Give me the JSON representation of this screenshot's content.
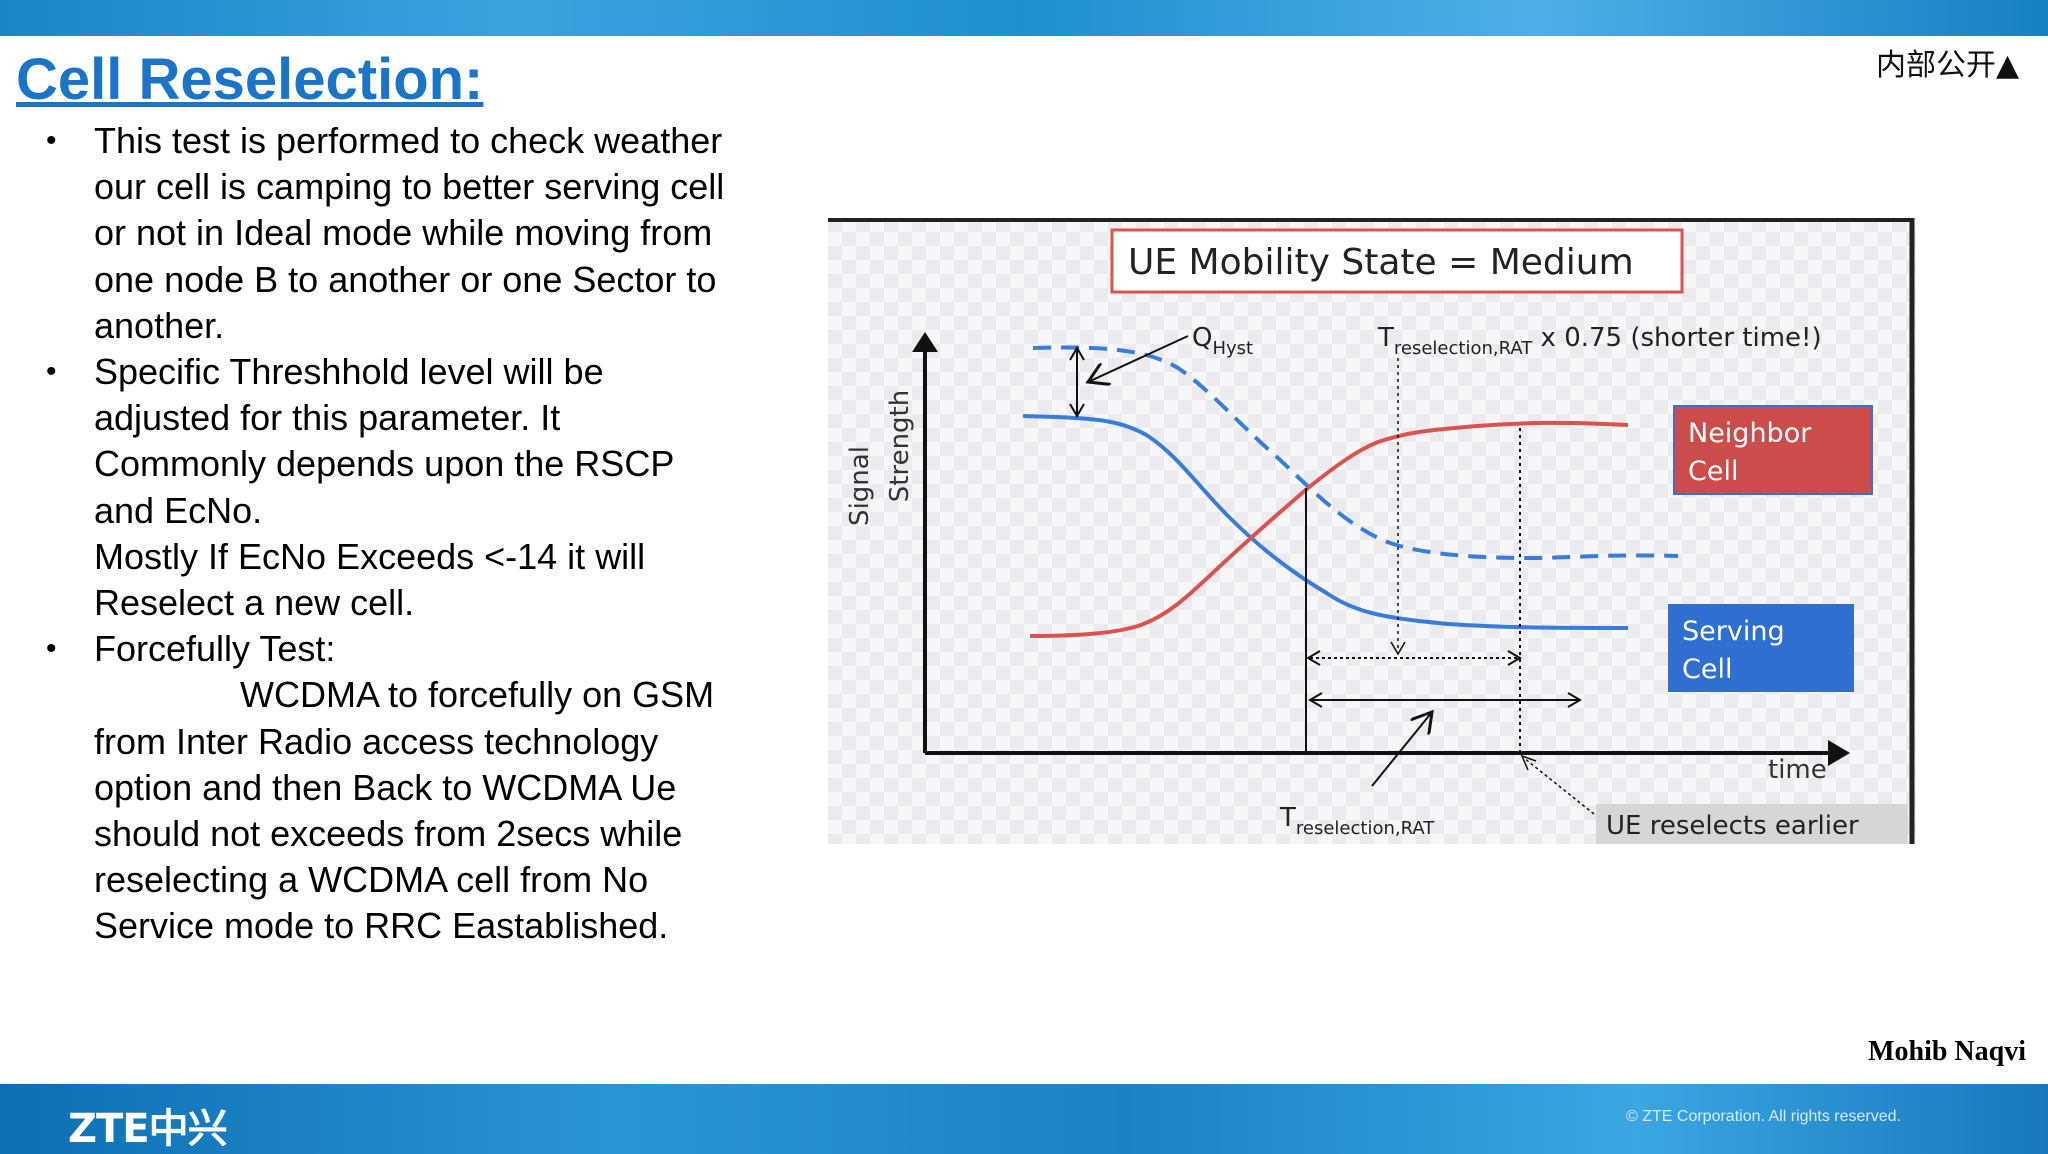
{
  "header": {
    "classification": "内部公开▲"
  },
  "slide": {
    "title": "Cell Reselection:"
  },
  "body": {
    "bullet1": {
      "marker": "•",
      "lines": [
        "This test is performed to check weather",
        "our cell is camping to better serving cell",
        "or not in Ideal mode  while moving from",
        "one node B to another or one Sector to",
        "another."
      ]
    },
    "bullet2": {
      "marker": "•",
      "lines": [
        "Specific Threshhold level will be",
        "adjusted for this parameter. It",
        "Commonly depends upon the RSCP",
        "and EcNo.",
        "Mostly If EcNo Exceeds <-14 it will",
        "Reselect a new cell."
      ]
    },
    "bullet3": {
      "marker": "•",
      "lines": [
        "Forcefully Test:",
        "WCDMA to forcefully on GSM",
        "from Inter Radio access technology",
        "option and then Back to WCDMA Ue",
        "should not exceeds from 2secs while",
        "reselecting a WCDMA cell from No",
        "Service mode to RRC Eastablished."
      ]
    }
  },
  "diagram": {
    "title": "UE Mobility State = Medium",
    "y_axis_line1": "Signal",
    "y_axis_line2": "Strength",
    "x_axis": "time",
    "qhyst_main": "Q",
    "qhyst_sub": "Hyst",
    "treselect_top_main": "T",
    "treselect_top_sub": "reselection,RAT",
    "treselect_top_suffix": " x 0.75 (shorter time!)",
    "treselect_bottom_main": "T",
    "treselect_bottom_sub": "reselection,RAT",
    "neighbor_line1": "Neighbor",
    "neighbor_line2": "Cell",
    "serving_line1": "Serving",
    "serving_line2": "Cell",
    "ue_reselects": "UE reselects earlier",
    "colors": {
      "neighbor": "#d9534f",
      "neighbor_box": "#cc4b4b",
      "serving": "#3a7dd8",
      "serving_box": "#2f6fd0",
      "title_border": "#d9534f"
    }
  },
  "footer": {
    "author": "Mohib Naqvi",
    "logo": "ZTE中兴",
    "copyright": "© ZTE Corporation. All rights reserved."
  }
}
